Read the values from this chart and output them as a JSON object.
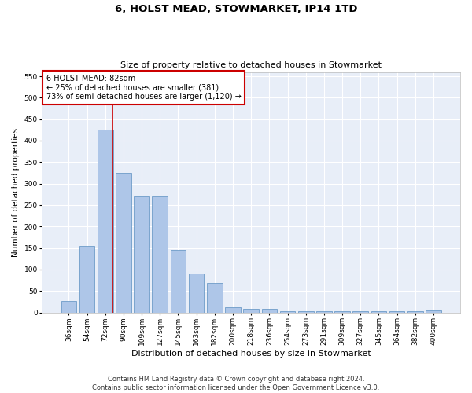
{
  "title": "6, HOLST MEAD, STOWMARKET, IP14 1TD",
  "subtitle": "Size of property relative to detached houses in Stowmarket",
  "xlabel": "Distribution of detached houses by size in Stowmarket",
  "ylabel": "Number of detached properties",
  "categories": [
    "36sqm",
    "54sqm",
    "72sqm",
    "90sqm",
    "109sqm",
    "127sqm",
    "145sqm",
    "163sqm",
    "182sqm",
    "200sqm",
    "218sqm",
    "236sqm",
    "254sqm",
    "273sqm",
    "291sqm",
    "309sqm",
    "327sqm",
    "345sqm",
    "364sqm",
    "382sqm",
    "400sqm"
  ],
  "values": [
    27,
    155,
    425,
    325,
    270,
    270,
    145,
    90,
    68,
    12,
    9,
    9,
    3,
    3,
    3,
    3,
    3,
    3,
    3,
    3,
    4
  ],
  "bar_color": "#aec6e8",
  "bar_edge_color": "#5a8fc0",
  "vline_x_index": 2,
  "vline_color": "#cc0000",
  "annotation_text": "6 HOLST MEAD: 82sqm\n← 25% of detached houses are smaller (381)\n73% of semi-detached houses are larger (1,120) →",
  "annotation_box_color": "#ffffff",
  "annotation_edge_color": "#cc0000",
  "ylim": [
    0,
    560
  ],
  "yticks": [
    0,
    50,
    100,
    150,
    200,
    250,
    300,
    350,
    400,
    450,
    500,
    550
  ],
  "background_color": "#e8eef8",
  "grid_color": "#ffffff",
  "footer": "Contains HM Land Registry data © Crown copyright and database right 2024.\nContains public sector information licensed under the Open Government Licence v3.0.",
  "title_fontsize": 9.5,
  "subtitle_fontsize": 8,
  "xlabel_fontsize": 8,
  "ylabel_fontsize": 7.5,
  "tick_fontsize": 6.5,
  "annotation_fontsize": 7,
  "footer_fontsize": 6
}
